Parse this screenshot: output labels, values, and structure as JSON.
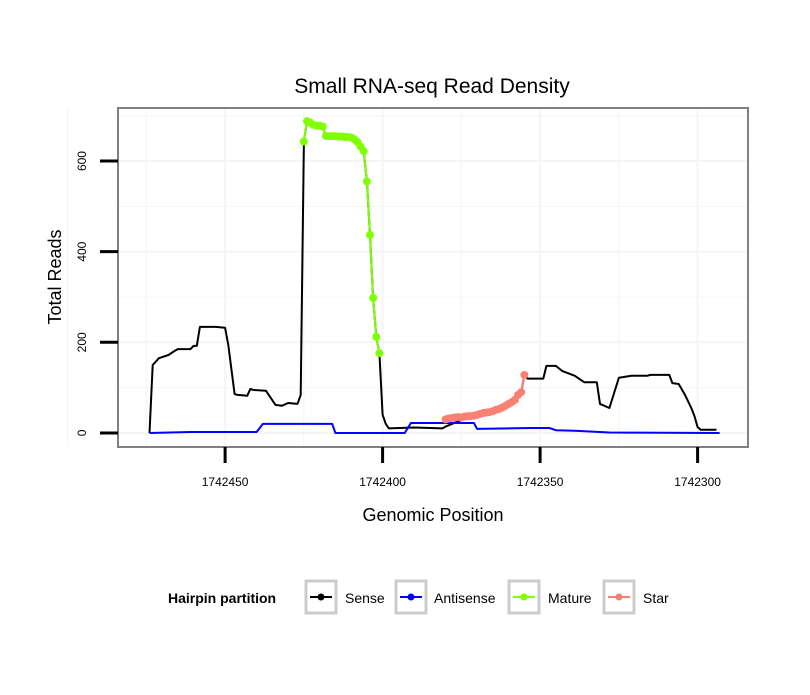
{
  "chart_data": {
    "type": "line",
    "title": "Small RNA-seq Read Density",
    "xlabel": "Genomic Position",
    "ylabel": "Total Reads",
    "x_reversed": true,
    "xlim": [
      1742484,
      1742284
    ],
    "ylim": [
      -31,
      717
    ],
    "grid": true,
    "x_ticks": [
      1742450,
      1742400,
      1742350,
      1742300
    ],
    "x_tick_labels": [
      "1742450",
      "1742400",
      "1742350",
      "1742300"
    ],
    "y_ticks": [
      0,
      200,
      400,
      600
    ],
    "y_tick_labels": [
      "0",
      "200",
      "400",
      "600"
    ],
    "legend": {
      "title": "Hairpin partition",
      "placement": "bottom",
      "entries": [
        "Sense",
        "Antisense",
        "Mature",
        "Star"
      ]
    },
    "series": [
      {
        "name": "Sense",
        "color": "#000000",
        "points": false,
        "x": [
          1742474,
          1742473,
          1742471,
          1742468,
          1742466,
          1742465,
          1742461,
          1742460,
          1742459,
          1742458,
          1742453,
          1742450,
          1742449,
          1742447,
          1742446,
          1742443,
          1742442,
          1742441,
          1742437,
          1742434,
          1742432,
          1742430,
          1742427,
          1742426,
          1742425,
          1742424,
          1742423,
          1742422,
          1742421,
          1742420,
          1742419,
          1742418,
          1742410,
          1742409,
          1742408,
          1742407,
          1742406,
          1742405,
          1742404,
          1742403,
          1742402,
          1742401,
          1742400,
          1742399,
          1742398,
          1742390,
          1742381,
          1742380,
          1742372,
          1742368,
          1742363,
          1742360,
          1742357,
          1742356,
          1742355,
          1742354,
          1742349,
          1742348,
          1742345,
          1742343,
          1742339,
          1742336,
          1742332,
          1742331,
          1742328,
          1742325,
          1742321,
          1742316,
          1742315,
          1742309,
          1742308,
          1742306,
          1742304,
          1742302,
          1742301,
          1742300,
          1742299,
          1742294
        ],
        "y": [
          0,
          150,
          165,
          172,
          181,
          185,
          185,
          192,
          192,
          234,
          234,
          232,
          194,
          86,
          84,
          82,
          97,
          95,
          93,
          62,
          60,
          66,
          64,
          84,
          643,
          688,
          685,
          680,
          678,
          678,
          676,
          655,
          652,
          648,
          642,
          632,
          622,
          555,
          437,
          298,
          212,
          176,
          40,
          20,
          10,
          12,
          10,
          14,
          37,
          44,
          53,
          64,
          84,
          90,
          128,
          120,
          120,
          148,
          148,
          137,
          126,
          112,
          112,
          64,
          55,
          122,
          126,
          126,
          128,
          128,
          110,
          108,
          84,
          55,
          37,
          13,
          7,
          7
        ]
      },
      {
        "name": "Antisense",
        "color": "#0000FF",
        "points": false,
        "x": [
          1742474,
          1742461,
          1742440,
          1742438,
          1742416,
          1742415,
          1742393,
          1742391,
          1742371,
          1742370,
          1742353,
          1742347,
          1742345,
          1742339,
          1742328,
          1742293
        ],
        "y": [
          0,
          2,
          2,
          20,
          20,
          0,
          0,
          22,
          22,
          9,
          11,
          11,
          6,
          5,
          1,
          0
        ]
      },
      {
        "name": "Mature",
        "color": "#7FFF00",
        "points": true,
        "x": [
          1742425,
          1742424,
          1742423,
          1742422,
          1742421,
          1742420,
          1742419,
          1742418,
          1742417,
          1742416,
          1742415,
          1742414,
          1742413,
          1742412,
          1742411,
          1742410,
          1742409,
          1742408,
          1742407,
          1742406,
          1742405,
          1742404,
          1742403,
          1742402,
          1742401
        ],
        "y": [
          643,
          688,
          685,
          680,
          678,
          678,
          676,
          655,
          655,
          655,
          655,
          654,
          654,
          653,
          653,
          652,
          648,
          642,
          632,
          622,
          555,
          437,
          298,
          212,
          176
        ]
      },
      {
        "name": "Star",
        "color": "#FA8072",
        "points": true,
        "x": [
          1742380,
          1742379,
          1742378,
          1742377,
          1742376,
          1742375,
          1742374,
          1742373,
          1742372,
          1742371,
          1742370,
          1742369,
          1742368,
          1742367,
          1742366,
          1742365,
          1742364,
          1742363,
          1742362,
          1742361,
          1742360,
          1742359,
          1742358,
          1742357,
          1742356,
          1742355
        ],
        "y": [
          30,
          32,
          33,
          34,
          35,
          34,
          36,
          37,
          37,
          38,
          40,
          42,
          44,
          45,
          46,
          48,
          51,
          53,
          56,
          60,
          64,
          68,
          73,
          84,
          90,
          128
        ]
      }
    ]
  }
}
